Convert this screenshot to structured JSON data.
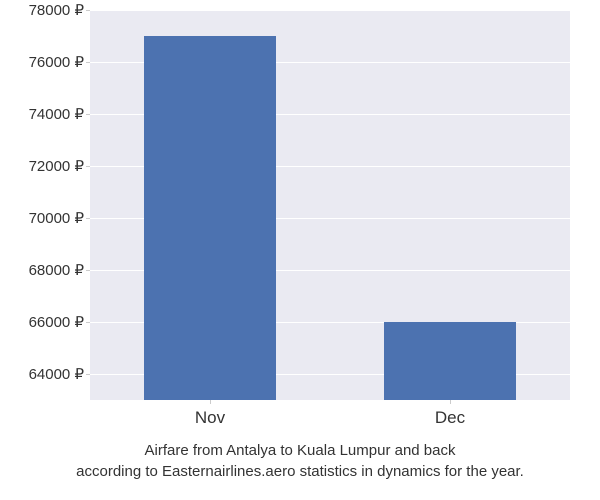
{
  "chart": {
    "type": "bar",
    "background_color": "#ffffff",
    "plot_background_color": "#eaeaf2",
    "grid_color": "#ffffff",
    "text_color": "#333333",
    "bar_color": "#4c72b0",
    "ylim": [
      63000,
      78000
    ],
    "ytick_step": 2000,
    "yticks": [
      {
        "value": 64000,
        "label": "64000 ₽"
      },
      {
        "value": 66000,
        "label": "66000 ₽"
      },
      {
        "value": 68000,
        "label": "68000 ₽"
      },
      {
        "value": 70000,
        "label": "70000 ₽"
      },
      {
        "value": 72000,
        "label": "72000 ₽"
      },
      {
        "value": 74000,
        "label": "74000 ₽"
      },
      {
        "value": 76000,
        "label": "76000 ₽"
      },
      {
        "value": 78000,
        "label": "78000 ₽"
      }
    ],
    "categories": [
      "Nov",
      "Dec"
    ],
    "values": [
      77000,
      66000
    ],
    "bar_width": 0.55,
    "label_fontsize": 15,
    "xlabel_fontsize": 17,
    "caption_line1": "Airfare from Antalya to Kuala Lumpur and back",
    "caption_line2": "according to Easternairlines.aero statistics in dynamics for the year.",
    "caption_fontsize": 15
  }
}
